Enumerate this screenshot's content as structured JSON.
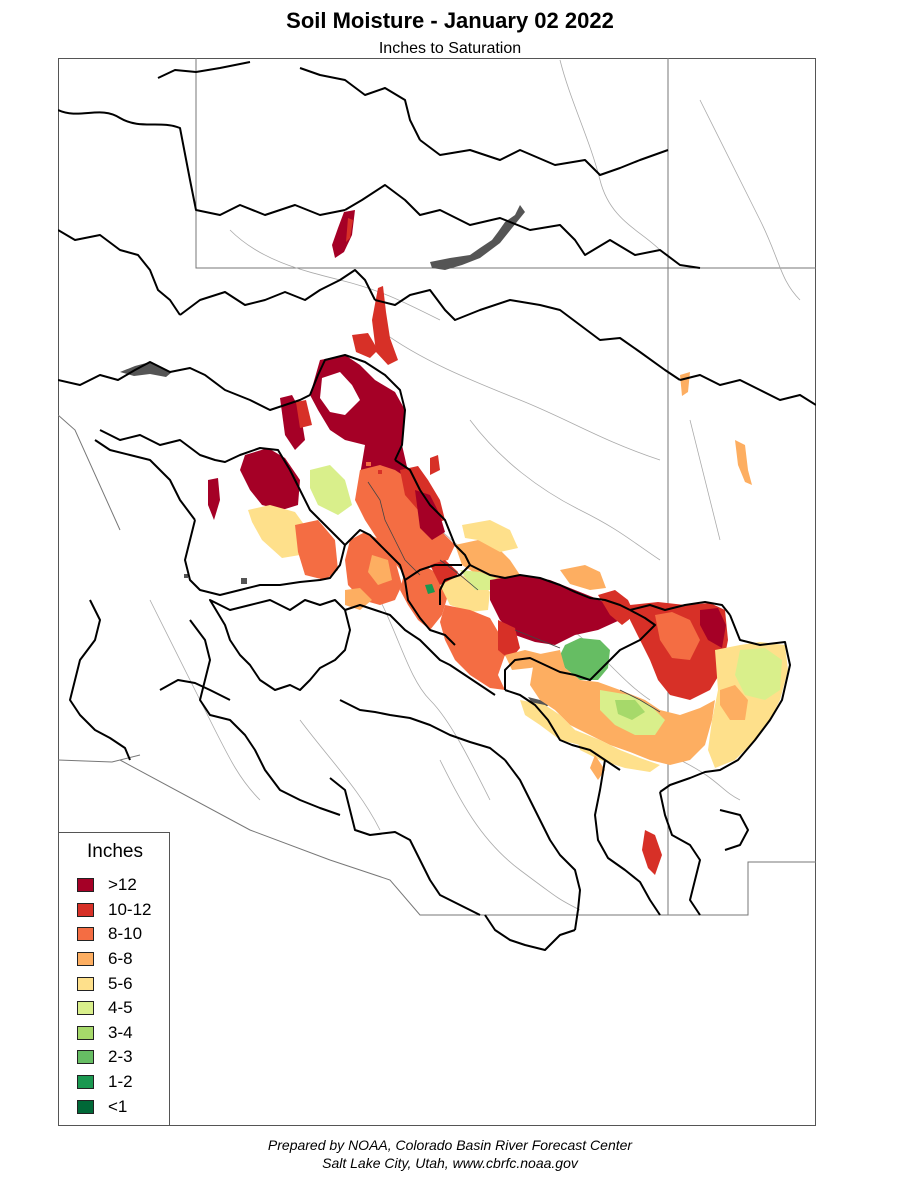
{
  "title": "Soil Moisture - January 02 2022",
  "subtitle": "Inches to Saturation",
  "legend": {
    "title": "Inches",
    "items": [
      {
        "label": ">12",
        "color": "#a50026"
      },
      {
        "label": "10-12",
        "color": "#d73027"
      },
      {
        "label": "8-10",
        "color": "#f46d43"
      },
      {
        "label": "6-8",
        "color": "#fdae61"
      },
      {
        "label": "5-6",
        "color": "#fee08b"
      },
      {
        "label": "4-5",
        "color": "#d9ef8b"
      },
      {
        "label": "3-4",
        "color": "#a6d96a"
      },
      {
        "label": "2-3",
        "color": "#66bd63"
      },
      {
        "label": "1-2",
        "color": "#1a9850"
      },
      {
        "label": "<1",
        "color": "#006837"
      }
    ]
  },
  "credit": {
    "line1": "Prepared by NOAA, Colorado Basin River Forecast Center",
    "line2": "Salt Lake City, Utah, www.cbrfc.noaa.gov"
  }
}
